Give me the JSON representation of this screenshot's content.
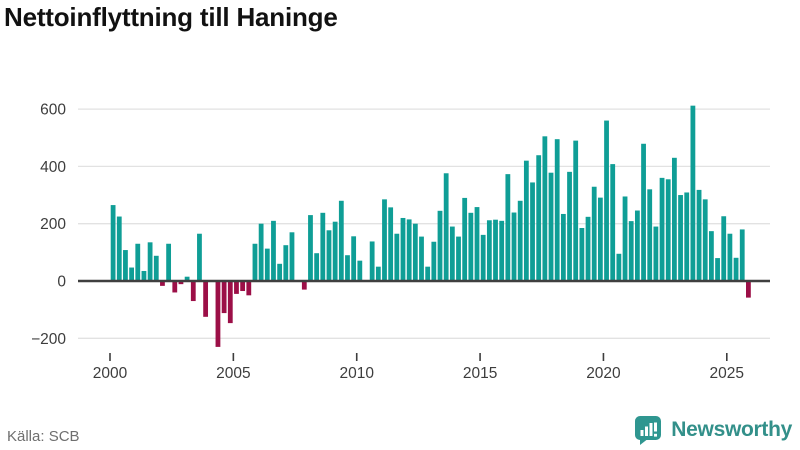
{
  "title": "Nettoinflyttning till Haninge",
  "source": "Källa: SCB",
  "branding": {
    "logo_text": "Newsworthy",
    "logo_color": "#33908a",
    "icon": "speech-bubble-bar-chart"
  },
  "colors": {
    "positive_bar": "#0f9e96",
    "negative_bar": "#9c0f47",
    "gridline": "#e2e2e2",
    "zero_line": "#3f3f3f",
    "axis_text": "#3d3d3d",
    "title_text": "#111111",
    "source_text": "#6f6f6f"
  },
  "chart_data": {
    "type": "bar",
    "title": "Nettoinflyttning till Haninge",
    "xlabel": "",
    "ylabel": "",
    "frequency": "quarterly",
    "x_start": "2000 Q1",
    "x_end": "2025 Q4",
    "ylim": [
      -250,
      650
    ],
    "grid": true,
    "y_ticks": [
      600,
      400,
      200,
      0,
      -200
    ],
    "y_tick_labels": [
      "600",
      "400",
      "200",
      "0",
      "−200"
    ],
    "x_tick_years": [
      2000,
      2005,
      2010,
      2015,
      2020,
      2025
    ],
    "x_tick_labels": [
      "2000",
      "2005",
      "2010",
      "2015",
      "2020",
      "2025"
    ],
    "series": [
      {
        "name": "Nettoinflyttning",
        "values": [
          265,
          225,
          108,
          47,
          130,
          35,
          135,
          88,
          -17,
          130,
          -40,
          -11,
          15,
          -70,
          165,
          -125,
          0,
          -230,
          -112,
          -147,
          -45,
          -35,
          -50,
          130,
          200,
          113,
          210,
          60,
          125,
          170,
          0,
          -30,
          230,
          97,
          238,
          177,
          207,
          280,
          90,
          156,
          71,
          0,
          138,
          50,
          285,
          257,
          165,
          220,
          215,
          200,
          155,
          50,
          137,
          245,
          376,
          190,
          155,
          290,
          238,
          258,
          161,
          212,
          214,
          210,
          373,
          239,
          280,
          420,
          344,
          439,
          505,
          378,
          495,
          234,
          381,
          490,
          185,
          224,
          329,
          291,
          560,
          408,
          95,
          295,
          209,
          246,
          479,
          320,
          190,
          360,
          355,
          430,
          300,
          309,
          612,
          318,
          285,
          174,
          80,
          226,
          165,
          81,
          180,
          -58
        ]
      }
    ]
  }
}
